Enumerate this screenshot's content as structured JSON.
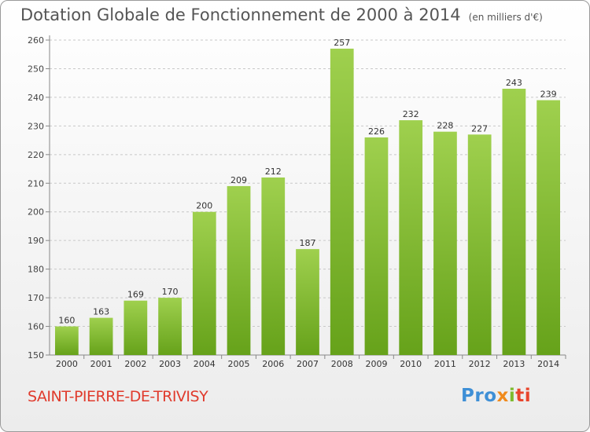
{
  "header": {
    "title": "Dotation Globale de Fonctionnement de 2000 à 2014",
    "unit": "(en milliers d'€)"
  },
  "footer": {
    "commune": "SAINT-PIERRE-DE-TRIVISY",
    "logo_parts": [
      "Pro",
      "x",
      "i",
      "ti"
    ]
  },
  "colors": {
    "bar_light": "#9fd04e",
    "bar_dark": "#66a21a",
    "title": "#555555",
    "commune": "#e03b2d"
  },
  "chart_data": {
    "type": "bar",
    "title": "Dotation Globale de Fonctionnement de 2000 à 2014",
    "subtitle": "(en milliers d'€)",
    "xlabel": "",
    "ylabel": "",
    "categories": [
      "2000",
      "2001",
      "2002",
      "2003",
      "2004",
      "2005",
      "2006",
      "2007",
      "2008",
      "2009",
      "2010",
      "2011",
      "2012",
      "2013",
      "2014"
    ],
    "values": [
      160,
      163,
      169,
      170,
      200,
      209,
      212,
      187,
      257,
      226,
      232,
      228,
      227,
      243,
      239
    ],
    "ylim": [
      150,
      260
    ],
    "yticks": [
      150,
      160,
      170,
      180,
      190,
      200,
      210,
      220,
      230,
      240,
      250,
      260
    ],
    "grid": "horizontal dashed",
    "legend": "none"
  }
}
